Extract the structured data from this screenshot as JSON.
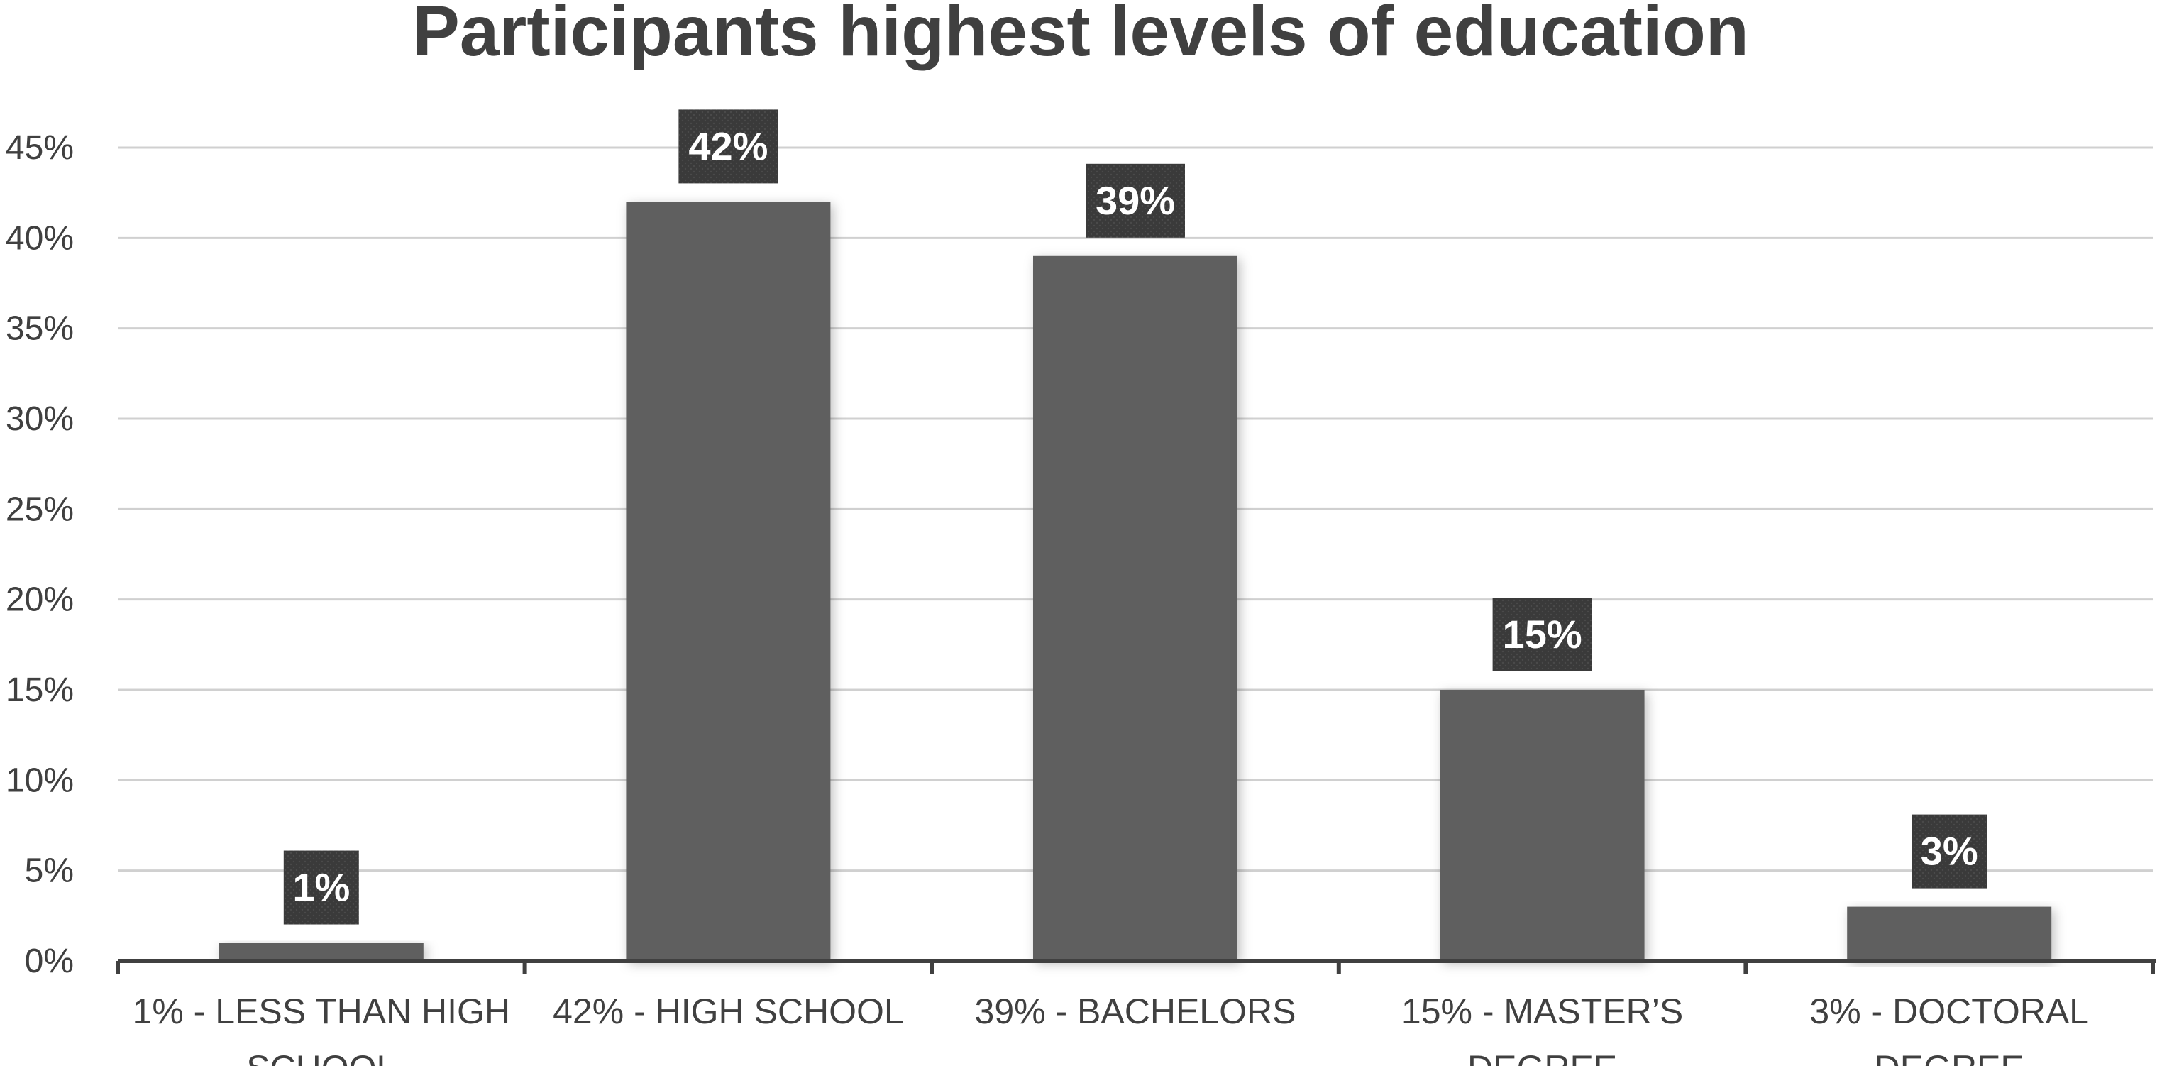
{
  "chart_data": {
    "type": "bar",
    "title": "Participants highest levels of education",
    "xlabel": "",
    "ylabel": "",
    "categories": [
      [
        "1% - LESS THAN HIGH",
        "SCHOOL"
      ],
      [
        "42% - HIGH SCHOOL"
      ],
      [
        "39% - BACHELORS"
      ],
      [
        "15% - MASTER’S",
        "DEGREE"
      ],
      [
        "3% - DOCTORAL",
        "DEGREE"
      ]
    ],
    "values": [
      1,
      42,
      39,
      15,
      3
    ],
    "data_labels": [
      "1%",
      "42%",
      "39%",
      "15%",
      "3%"
    ],
    "ylim": [
      0,
      45
    ],
    "yticks": [
      "0%",
      "5%",
      "10%",
      "15%",
      "20%",
      "25%",
      "30%",
      "35%",
      "40%",
      "45%"
    ],
    "grid": true,
    "legend": "none",
    "colors": {
      "bar": "#5e5e5e",
      "label_box": "#3c3c3c",
      "grid": "#d0d0d0",
      "axis": "#404040",
      "text": "#404040"
    }
  }
}
